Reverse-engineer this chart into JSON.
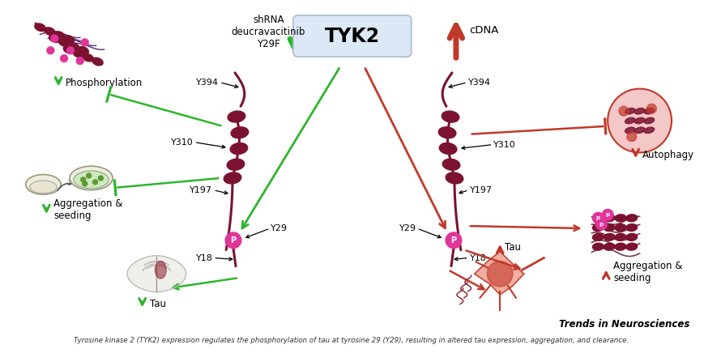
{
  "caption": "Tyrosine kinase 2 (TYK2) expression regulates the phosphorylation of tau at tyrosine 29 (Y29), resulting in altered tau expression, aggregation, and clearance.",
  "journal": "Trends in Neurosciences",
  "tyk2_label": "TYK2",
  "tyk2_box_color": "#dce8f5",
  "tyk2_box_edge": "#aabbd0",
  "shrna_text": "shRNA\ndeucravacitinib\nY29F",
  "cdna_text": "cDNA",
  "green": "#2db52d",
  "red": "#c0392b",
  "dark_red": "#7B1230",
  "magenta": "#e0359a",
  "bg_color": "#ffffff",
  "phospho_label": "Phosphorylation",
  "agg_seed_left": "Aggregation &\nseeding",
  "tau_left": "Tau",
  "tau_right": "Tau",
  "autophagy": "Autophagy",
  "agg_seed_right": "Aggregation &\nseeding"
}
